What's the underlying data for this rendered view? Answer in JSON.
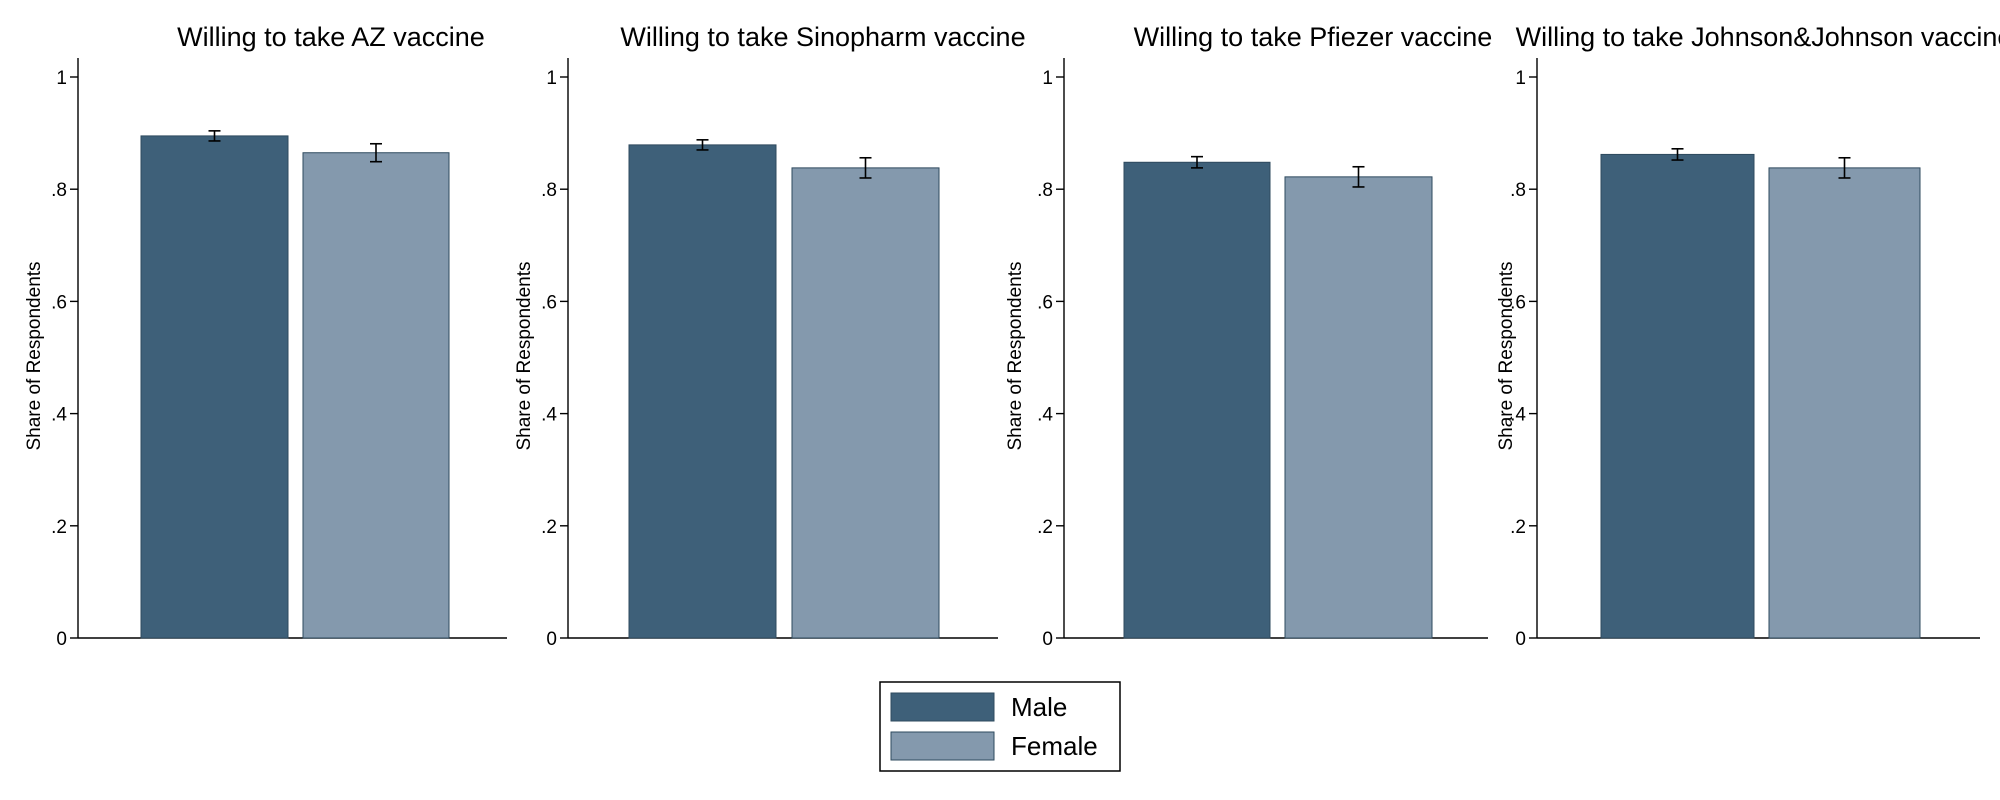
{
  "chart_data": {
    "type": "bar",
    "ylabel": "Share of Respondents",
    "ylim": [
      0,
      1
    ],
    "yticks": [
      {
        "value": 0,
        "label": "0"
      },
      {
        "value": 0.2,
        "label": ".2"
      },
      {
        "value": 0.4,
        "label": ".4"
      },
      {
        "value": 0.6,
        "label": ".6"
      },
      {
        "value": 0.8,
        "label": ".8"
      },
      {
        "value": 1,
        "label": "1"
      }
    ],
    "grid": false,
    "legend_position": "bottom-center",
    "series": [
      {
        "name": "Male",
        "color": "#3e6079"
      },
      {
        "name": "Female",
        "color": "#8499ad"
      }
    ],
    "panels": [
      {
        "title": "Willing to take AZ vaccine",
        "values": [
          0.895,
          0.865
        ],
        "ci_low": [
          0.886,
          0.849
        ],
        "ci_high": [
          0.904,
          0.881
        ]
      },
      {
        "title": "Willing to take Sinopharm vaccine",
        "values": [
          0.879,
          0.838
        ],
        "ci_low": [
          0.87,
          0.82
        ],
        "ci_high": [
          0.888,
          0.856
        ]
      },
      {
        "title": "Willing to take Pfiezer vaccine",
        "values": [
          0.848,
          0.822
        ],
        "ci_low": [
          0.838,
          0.804
        ],
        "ci_high": [
          0.858,
          0.84
        ]
      },
      {
        "title": "Willing to take Johnson&Johnson vaccine",
        "values": [
          0.862,
          0.838
        ],
        "ci_low": [
          0.852,
          0.82
        ],
        "ci_high": [
          0.872,
          0.856
        ]
      }
    ]
  }
}
